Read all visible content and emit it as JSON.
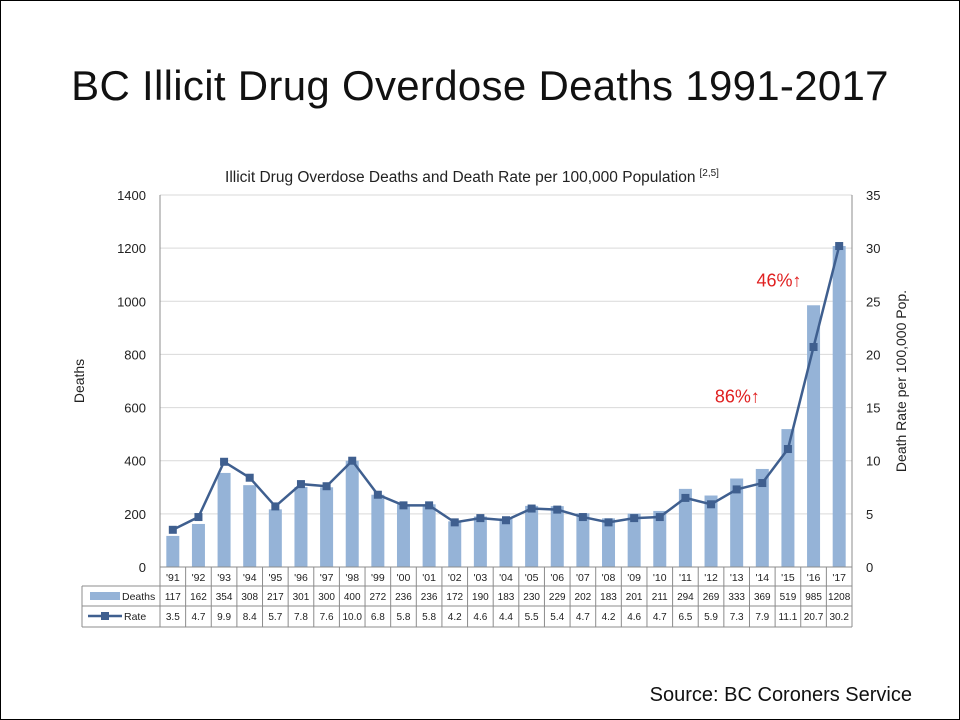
{
  "slide": {
    "title": "BC Illicit Drug Overdose Deaths 1991-2017",
    "source": "Source: BC Coroners Service"
  },
  "chart_data": {
    "type": "bar",
    "title": "Illicit Drug Overdose Deaths and Death Rate per 100,000 Population",
    "title_superscript": "[2,5]",
    "ylabel": "Deaths",
    "y2label": "Death Rate per 100,000 Pop.",
    "ylim": [
      0,
      1400
    ],
    "y2lim": [
      0,
      35
    ],
    "yticks": [
      "0",
      "200",
      "400",
      "600",
      "800",
      "1000",
      "1200",
      "1400"
    ],
    "y2ticks": [
      "0",
      "5",
      "10",
      "15",
      "20",
      "25",
      "30",
      "35"
    ],
    "grid": true,
    "categories": [
      "'91",
      "'92",
      "'93",
      "'94",
      "'95",
      "'96",
      "'97",
      "'98",
      "'99",
      "'00",
      "'01",
      "'02",
      "'03",
      "'04",
      "'05",
      "'06",
      "'07",
      "'08",
      "'09",
      "'10",
      "'11",
      "'12",
      "'13",
      "'14",
      "'15",
      "'16",
      "'17"
    ],
    "series": [
      {
        "name": "Deaths",
        "type": "bar",
        "axis": "left",
        "color": "#95b3d7",
        "values": [
          117,
          162,
          354,
          308,
          217,
          301,
          300,
          400,
          272,
          236,
          236,
          172,
          190,
          183,
          230,
          229,
          202,
          183,
          201,
          211,
          294,
          269,
          333,
          369,
          519,
          985,
          1208
        ],
        "labels": [
          "117",
          "162",
          "354",
          "308",
          "217",
          "301",
          "300",
          "400",
          "272",
          "236",
          "236",
          "172",
          "190",
          "183",
          "230",
          "229",
          "202",
          "183",
          "201",
          "211",
          "294",
          "269",
          "333",
          "369",
          "519",
          "985",
          "1208"
        ]
      },
      {
        "name": "Rate",
        "type": "line",
        "axis": "right",
        "color": "#3f5f8f",
        "values": [
          3.5,
          4.7,
          9.9,
          8.4,
          5.7,
          7.8,
          7.6,
          10.0,
          6.8,
          5.8,
          5.8,
          4.2,
          4.6,
          4.4,
          5.5,
          5.4,
          4.7,
          4.2,
          4.6,
          4.7,
          6.5,
          5.9,
          7.3,
          7.9,
          11.1,
          20.7,
          30.2
        ],
        "labels": [
          "3.5",
          "4.7",
          "9.9",
          "8.4",
          "5.7",
          "7.8",
          "7.6",
          "10.0",
          "6.8",
          "5.8",
          "5.8",
          "4.2",
          "4.6",
          "4.4",
          "5.5",
          "5.4",
          "4.7",
          "4.2",
          "4.6",
          "4.7",
          "6.5",
          "5.9",
          "7.3",
          "7.9",
          "11.1",
          "20.7",
          "30.2"
        ]
      }
    ],
    "annotations": [
      {
        "text": "86%↑",
        "category": "'15",
        "color": "#e02020"
      },
      {
        "text": "46%↑",
        "category": "'16",
        "color": "#e02020"
      }
    ]
  }
}
